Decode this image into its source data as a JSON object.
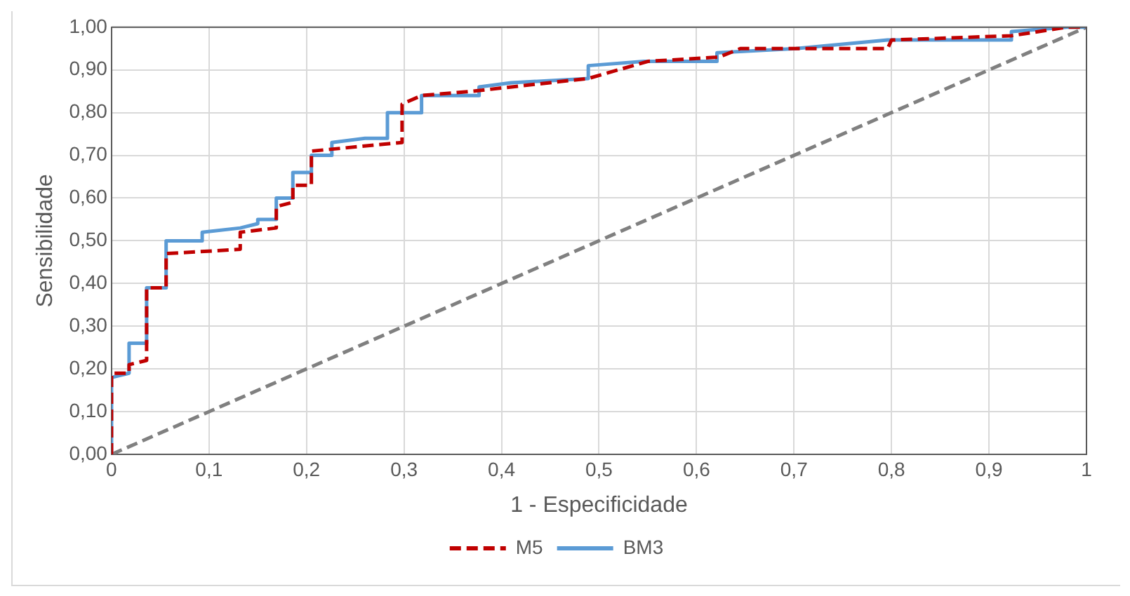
{
  "chart_data": {
    "type": "line",
    "xlabel": "1 - Especificidade",
    "ylabel": "Sensibilidade",
    "xlim": [
      0,
      1
    ],
    "ylim": [
      0,
      1
    ],
    "xticks": [
      0,
      {
        "value": 0.1,
        "label": "0,1"
      },
      {
        "value": 0.2,
        "label": "0,2"
      },
      {
        "value": 0.3,
        "label": "0,3"
      },
      {
        "value": 0.4,
        "label": "0,4"
      },
      {
        "value": 0.5,
        "label": "0,5"
      },
      {
        "value": 0.6,
        "label": "0,6"
      },
      {
        "value": 0.7,
        "label": "0,7"
      },
      {
        "value": 0.8,
        "label": "0,8"
      },
      {
        "value": 0.9,
        "label": "0,9"
      },
      1
    ],
    "yticks": [
      {
        "value": 0,
        "label": "0,00"
      },
      {
        "value": 0.1,
        "label": "0,10"
      },
      {
        "value": 0.2,
        "label": "0,20"
      },
      {
        "value": 0.3,
        "label": "0,30"
      },
      {
        "value": 0.4,
        "label": "0,40"
      },
      {
        "value": 0.5,
        "label": "0,50"
      },
      {
        "value": 0.6,
        "label": "0,60"
      },
      {
        "value": 0.7,
        "label": "0,70"
      },
      {
        "value": 0.8,
        "label": "0,80"
      },
      {
        "value": 0.9,
        "label": "0,90"
      },
      {
        "value": 1,
        "label": "1,00"
      }
    ],
    "grid": true,
    "legend": "bottom",
    "marker": "none",
    "series": [
      {
        "name": "M5",
        "color": "#c00000",
        "line_style": "dashed",
        "x": [
          0,
          0,
          0.018,
          0.018,
          0.036,
          0.036,
          0.056,
          0.056,
          0.132,
          0.132,
          0.169,
          0.169,
          0.186,
          0.186,
          0.205,
          0.205,
          0.298,
          0.298,
          0.318,
          0.37,
          0.489,
          0.55,
          0.623,
          0.645,
          0.796,
          0.8,
          0.923,
          0.98,
          1
        ],
        "values": [
          0,
          0.19,
          0.19,
          0.21,
          0.22,
          0.39,
          0.39,
          0.47,
          0.48,
          0.52,
          0.53,
          0.58,
          0.59,
          0.63,
          0.63,
          0.71,
          0.73,
          0.82,
          0.84,
          0.85,
          0.88,
          0.92,
          0.93,
          0.95,
          0.95,
          0.97,
          0.98,
          1,
          1
        ]
      },
      {
        "name": "BM3",
        "color": "#5b9bd5",
        "line_style": "solid",
        "x": [
          0,
          0,
          0.018,
          0.018,
          0.036,
          0.036,
          0.056,
          0.056,
          0.093,
          0.093,
          0.132,
          0.15,
          0.15,
          0.169,
          0.169,
          0.186,
          0.186,
          0.205,
          0.205,
          0.226,
          0.226,
          0.26,
          0.283,
          0.283,
          0.318,
          0.318,
          0.377,
          0.377,
          0.41,
          0.489,
          0.489,
          0.546,
          0.621,
          0.621,
          0.702,
          0.796,
          0.923,
          0.923,
          0.98,
          1
        ],
        "values": [
          0,
          0.18,
          0.19,
          0.26,
          0.26,
          0.39,
          0.39,
          0.5,
          0.5,
          0.52,
          0.53,
          0.54,
          0.55,
          0.55,
          0.6,
          0.6,
          0.66,
          0.66,
          0.7,
          0.7,
          0.73,
          0.74,
          0.74,
          0.8,
          0.8,
          0.84,
          0.84,
          0.86,
          0.87,
          0.88,
          0.91,
          0.92,
          0.92,
          0.94,
          0.95,
          0.97,
          0.97,
          0.99,
          1,
          1
        ]
      },
      {
        "color": "#808080",
        "line_style": "dashed",
        "x": [
          0,
          1
        ],
        "values": [
          0,
          1
        ]
      }
    ]
  }
}
